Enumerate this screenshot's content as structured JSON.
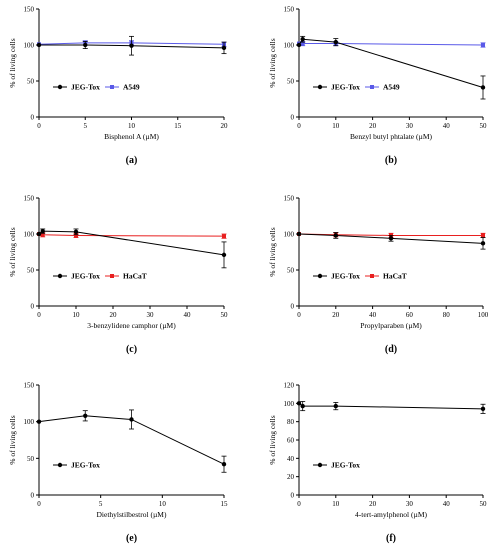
{
  "chart_data": [
    {
      "type": "line",
      "panel_label": "(a)",
      "xlabel": "Bisphenol A (µM)",
      "ylabel": "% of living cells",
      "xlim": [
        0,
        20
      ],
      "ylim": [
        0,
        150
      ],
      "xticks": [
        0,
        5,
        10,
        15,
        20
      ],
      "yticks": [
        0,
        50,
        100,
        150
      ],
      "legend": "bottom-left",
      "series": [
        {
          "name": "JEG-Tox",
          "color": "#000000",
          "marker": "circle",
          "x": [
            0,
            5,
            10,
            20
          ],
          "y": [
            100,
            100,
            99,
            96
          ],
          "err": [
            0,
            5,
            13,
            8
          ]
        },
        {
          "name": "A549",
          "color": "#5a5ae8",
          "marker": "square",
          "x": [
            0,
            5,
            10,
            20
          ],
          "y": [
            101,
            103,
            103,
            101
          ],
          "err": [
            0,
            3,
            3,
            3
          ]
        }
      ]
    },
    {
      "type": "line",
      "panel_label": "(b)",
      "xlabel": "Benzyl butyl phtalate (µM)",
      "ylabel": "% of living cells",
      "xlim": [
        0,
        50
      ],
      "ylim": [
        0,
        150
      ],
      "xticks": [
        0,
        10,
        20,
        30,
        40,
        50
      ],
      "yticks": [
        0,
        50,
        100,
        150
      ],
      "legend": "bottom-left",
      "series": [
        {
          "name": "JEG-Tox",
          "color": "#000000",
          "marker": "circle",
          "x": [
            0,
            1,
            10,
            50
          ],
          "y": [
            100,
            108,
            104,
            41
          ],
          "err": [
            0,
            4,
            5,
            16
          ]
        },
        {
          "name": "A549",
          "color": "#5a5ae8",
          "marker": "square",
          "x": [
            0,
            1,
            10,
            50
          ],
          "y": [
            102,
            102,
            102,
            100
          ],
          "err": [
            0,
            3,
            3,
            3
          ]
        }
      ]
    },
    {
      "type": "line",
      "panel_label": "(c)",
      "xlabel": "3-benzylidene camphor (µM)",
      "ylabel": "% of living cells",
      "xlim": [
        0,
        50
      ],
      "ylim": [
        0,
        150
      ],
      "xticks": [
        0,
        10,
        20,
        30,
        40,
        50
      ],
      "yticks": [
        0,
        50,
        100,
        150
      ],
      "legend": "bottom-left",
      "series": [
        {
          "name": "JEG-Tox",
          "color": "#000000",
          "marker": "circle",
          "x": [
            0,
            1,
            10,
            50
          ],
          "y": [
            100,
            104,
            103,
            71
          ],
          "err": [
            0,
            3,
            4,
            18
          ]
        },
        {
          "name": "HaCaT",
          "color": "#e82020",
          "marker": "square",
          "x": [
            0,
            1,
            10,
            50
          ],
          "y": [
            100,
            99,
            98,
            97
          ],
          "err": [
            0,
            3,
            3,
            3
          ]
        }
      ]
    },
    {
      "type": "line",
      "panel_label": "(d)",
      "xlabel": "Propylparaben (µM)",
      "ylabel": "% of living cells",
      "xlim": [
        0,
        100
      ],
      "ylim": [
        0,
        150
      ],
      "xticks": [
        0,
        20,
        40,
        60,
        80,
        100
      ],
      "yticks": [
        0,
        50,
        100,
        150
      ],
      "legend": "bottom-left",
      "series": [
        {
          "name": "JEG-Tox",
          "color": "#000000",
          "marker": "circle",
          "x": [
            0,
            20,
            50,
            100
          ],
          "y": [
            100,
            98,
            94,
            87
          ],
          "err": [
            0,
            4,
            4,
            8
          ]
        },
        {
          "name": "HaCaT",
          "color": "#e82020",
          "marker": "square",
          "x": [
            0,
            20,
            50,
            100
          ],
          "y": [
            100,
            99,
            98,
            98
          ],
          "err": [
            0,
            3,
            3,
            3
          ]
        }
      ]
    },
    {
      "type": "line",
      "panel_label": "(e)",
      "xlabel": "Diethylstilbestrol (µM)",
      "ylabel": "% of living cells",
      "xlim": [
        0,
        15
      ],
      "ylim": [
        0,
        150
      ],
      "xticks": [
        0,
        5,
        10,
        15
      ],
      "yticks": [
        0,
        50,
        100,
        150
      ],
      "legend": "bottom-left",
      "series": [
        {
          "name": "JEG-Tox",
          "color": "#000000",
          "marker": "circle",
          "x": [
            0,
            3.75,
            7.5,
            15
          ],
          "y": [
            100,
            108,
            103,
            42
          ],
          "err": [
            0,
            7,
            13,
            11
          ]
        }
      ]
    },
    {
      "type": "line",
      "panel_label": "(f)",
      "xlabel": "4-tert-amylphenol (µM)",
      "ylabel": "% of living cells",
      "xlim": [
        0,
        50
      ],
      "ylim": [
        0,
        120
      ],
      "xticks": [
        0,
        10,
        20,
        30,
        40,
        50
      ],
      "yticks": [
        0,
        20,
        40,
        60,
        80,
        100,
        120
      ],
      "legend": "bottom-left",
      "series": [
        {
          "name": "JEG-Tox",
          "color": "#000000",
          "marker": "circle",
          "x": [
            0,
            1,
            10,
            50
          ],
          "y": [
            100,
            97,
            97,
            94
          ],
          "err": [
            0,
            5,
            4,
            5
          ]
        }
      ]
    }
  ]
}
